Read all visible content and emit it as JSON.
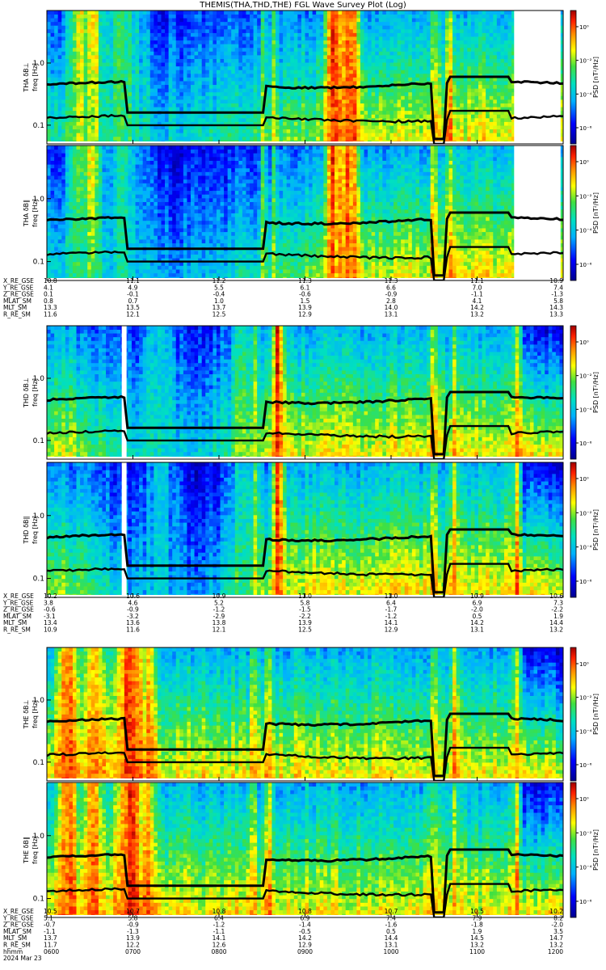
{
  "title": "THEMIS(THA,THD,THE) FGL Wave Survey Plot (Log)",
  "colorbar_label": "PSD [nT²/Hz]",
  "colorbar_ticks": [
    "10⁰",
    "10⁻²",
    "10⁻⁴",
    "10⁻⁶"
  ],
  "y_ticks": [
    "1.0",
    "0.1"
  ],
  "probes": [
    {
      "panels": [
        {
          "label": "THA δB⊥",
          "ylabel": "freq [Hz]"
        },
        {
          "label": "THA δB∥",
          "ylabel": "freq [Hz]"
        }
      ],
      "ephemeris": [
        {
          "name": "X_RE_GSE",
          "values": [
            "10.8",
            "11.1",
            "11.2",
            "11.3",
            "11.3",
            "11.1",
            "10.9"
          ]
        },
        {
          "name": "Y_RE_GSE",
          "values": [
            "4.1",
            "4.9",
            "5.5",
            "6.1",
            "6.6",
            "7.0",
            "7.4"
          ]
        },
        {
          "name": "Z_RE_GSE",
          "values": [
            "0.1",
            "-0.1",
            "-0.4",
            "-0.6",
            "-0.9",
            "-1.1",
            "-1.3"
          ]
        },
        {
          "name": "MLAT_SM",
          "values": [
            "0.8",
            "0.7",
            "1.0",
            "1.5",
            "2.8",
            "4.1",
            "5.8"
          ]
        },
        {
          "name": "MLT_SM",
          "values": [
            "13.3",
            "13.5",
            "13.7",
            "13.9",
            "14.0",
            "14.2",
            "14.3"
          ]
        },
        {
          "name": "R_RE_SM",
          "values": [
            "11.6",
            "12.1",
            "12.5",
            "12.9",
            "13.1",
            "13.2",
            "13.3"
          ]
        }
      ]
    },
    {
      "panels": [
        {
          "label": "THD δB⊥",
          "ylabel": "freq [Hz]"
        },
        {
          "label": "THD δB∥",
          "ylabel": "freq [Hz]"
        }
      ],
      "ephemeris": [
        {
          "name": "X_RE_GSE",
          "values": [
            "10.2",
            "10.6",
            "10.9",
            "11.0",
            "11.0",
            "10.9",
            "10.6"
          ]
        },
        {
          "name": "Y_RE_GSE",
          "values": [
            "3.8",
            "4.6",
            "5.2",
            "5.8",
            "6.4",
            "6.9",
            "7.3"
          ]
        },
        {
          "name": "Z_RE_GSE",
          "values": [
            "-0.6",
            "-0.9",
            "-1.2",
            "-1.5",
            "-1.7",
            "-2.0",
            "-2.2"
          ]
        },
        {
          "name": "MLAT_SM",
          "values": [
            "-3.1",
            "-3.2",
            "-2.9",
            "-2.2",
            "-1.2",
            "0.5",
            "1.9"
          ]
        },
        {
          "name": "MLT_SM",
          "values": [
            "13.4",
            "13.6",
            "13.8",
            "13.9",
            "14.1",
            "14.2",
            "14.4"
          ]
        },
        {
          "name": "R_RE_SM",
          "values": [
            "10.9",
            "11.6",
            "12.1",
            "12.5",
            "12.9",
            "13.1",
            "13.2"
          ]
        }
      ]
    },
    {
      "panels": [
        {
          "label": "THE δB⊥",
          "ylabel": "freq [Hz]"
        },
        {
          "label": "THE δB∥",
          "ylabel": "freq [Hz]"
        }
      ],
      "ephemeris": [
        {
          "name": "X_RE_GSE",
          "values": [
            "10.5",
            "10.7",
            "10.8",
            "10.8",
            "10.7",
            "10.5",
            "10.2"
          ]
        },
        {
          "name": "Y_RE_GSE",
          "values": [
            "5.1",
            "5.8",
            "6.4",
            "6.9",
            "7.4",
            "7.9",
            "8.2"
          ]
        },
        {
          "name": "Z_RE_GSE",
          "values": [
            "-0.7",
            "-0.9",
            "-1.2",
            "-1.4",
            "-1.6",
            "-1.8",
            "-2.0"
          ]
        },
        {
          "name": "MLAT_SM",
          "values": [
            "-1.1",
            "-1.3",
            "-1.1",
            "-0.5",
            "0.5",
            "1.9",
            "3.5"
          ]
        },
        {
          "name": "MLT_SM",
          "values": [
            "13.7",
            "13.9",
            "14.1",
            "14.2",
            "14.4",
            "14.5",
            "14.7"
          ]
        },
        {
          "name": "R_RE_SM",
          "values": [
            "11.7",
            "12.2",
            "12.6",
            "12.9",
            "13.1",
            "13.2",
            "13.2"
          ]
        }
      ]
    }
  ],
  "time_axis": {
    "name": "hhmm",
    "values": [
      "0600",
      "0700",
      "0800",
      "0900",
      "1000",
      "1100",
      "1200"
    ]
  },
  "date": "2024 Mar 23",
  "chart_data": {
    "type": "heatmap",
    "title": "THEMIS(THA,THD,THE) FGL Wave Survey Plot (Log)",
    "xlabel": "hhmm",
    "x_ticks": [
      "0600",
      "0700",
      "0800",
      "0900",
      "1000",
      "1100",
      "1200"
    ],
    "ylabel": "freq [Hz]",
    "y_scale": "log",
    "ylim": [
      0.05,
      7
    ],
    "y_ticks": [
      1.0,
      0.1
    ],
    "colorbar": {
      "label": "PSD [nT²/Hz]",
      "scale": "log",
      "range": [
        1e-07,
        10
      ],
      "ticks": [
        "10⁰",
        "10⁻²",
        "10⁻⁴",
        "10⁻⁶"
      ],
      "colormap": "rainbow"
    },
    "series": [
      {
        "name": "THA δB⊥"
      },
      {
        "name": "THA δB∥"
      },
      {
        "name": "THD δB⊥"
      },
      {
        "name": "THD δB∥"
      },
      {
        "name": "THE δB⊥"
      },
      {
        "name": "THE δB∥"
      }
    ],
    "reference_lines": "black curves: cyclotron-frequency traces near 0.5 Hz and 0.13 Hz",
    "colors": {
      "hot": "#c00000",
      "high": "#ff6000",
      "mid": "#ffff00",
      "low": "#00c8c8",
      "min": "#000090"
    }
  }
}
